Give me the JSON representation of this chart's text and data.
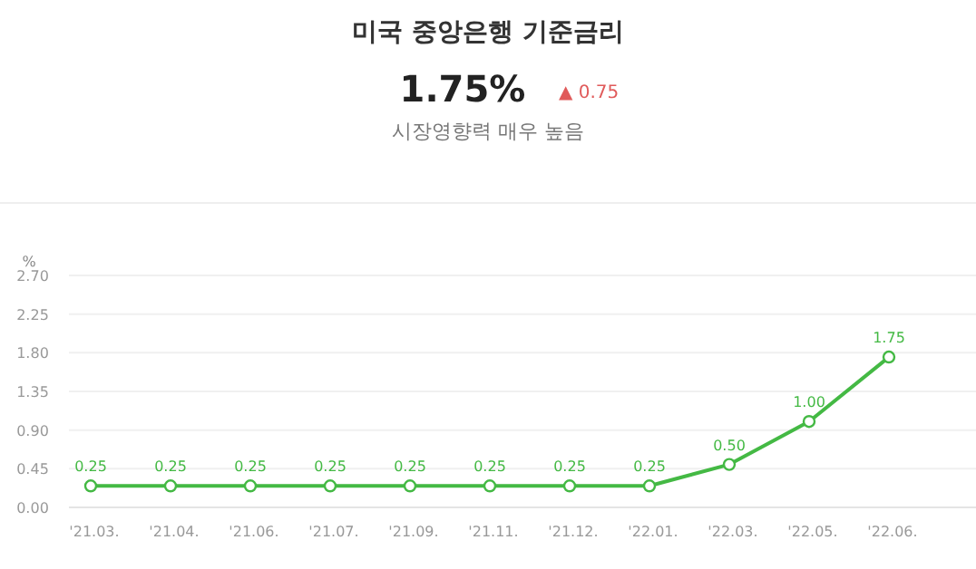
{
  "chart_data": {
    "type": "line",
    "title": "미국 중앙은행 기준금리",
    "subtitle": "1.75%",
    "annotations": [
      "▲ 0.75",
      "시장영향력 매우 높음"
    ],
    "ylabel": "%",
    "categories": [
      "'21.03.",
      "'21.04.",
      "'21.06.",
      "'21.07.",
      "'21.09.",
      "'21.11.",
      "'21.12.",
      "'22.01.",
      "'22.03.",
      "'22.05.",
      "'22.06."
    ],
    "series": [
      {
        "color": "#44b944",
        "values": [
          0.25,
          0.25,
          0.25,
          0.25,
          0.25,
          0.25,
          0.25,
          0.25,
          0.5,
          1.0,
          1.75
        ],
        "value_labels": [
          "0.25",
          "0.25",
          "0.25",
          "0.25",
          "0.25",
          "0.25",
          "0.25",
          "0.25",
          "0.50",
          "1.00",
          "1.75"
        ]
      }
    ],
    "ylim": [
      0,
      2.7
    ],
    "yticks": [
      {
        "value": 0,
        "label": "0.00"
      },
      {
        "value": 0.45,
        "label": "0.45"
      },
      {
        "value": 0.9,
        "label": "0.90"
      },
      {
        "value": 1.35,
        "label": "1.35"
      },
      {
        "value": 1.8,
        "label": "1.80"
      },
      {
        "value": 2.25,
        "label": "2.25"
      },
      {
        "value": 2.7,
        "label": "2.70"
      }
    ],
    "grid": "y",
    "marker": "circle",
    "line_style": "solid"
  }
}
